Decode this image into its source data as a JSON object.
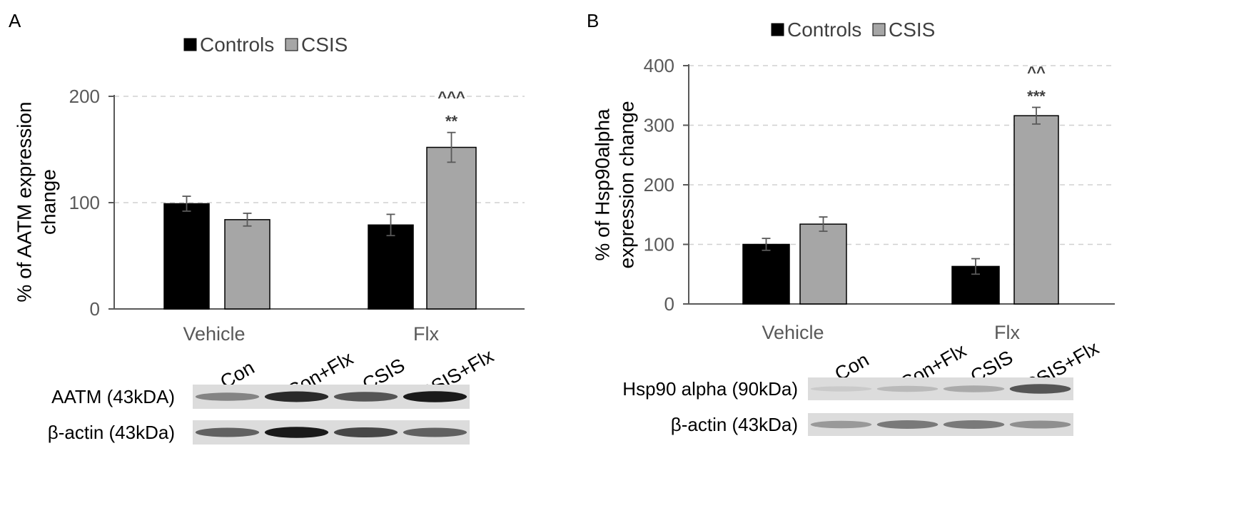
{
  "colors": {
    "controls": "#000000",
    "csis": "#a6a6a6",
    "axis": "#595959",
    "grid": "#d0d0d0",
    "text": "#404040",
    "band_bg": "#dcdcdc"
  },
  "chart_data": [
    {
      "type": "bar",
      "panel_label": "A",
      "title": "",
      "ylabel_lines": [
        "% of AATM expression",
        "change"
      ],
      "xlabel": "",
      "ylim": [
        0,
        200
      ],
      "yticks": [
        0,
        100,
        200
      ],
      "grid": true,
      "legend_position": "top",
      "categories": [
        "Vehicle",
        "Flx"
      ],
      "series": [
        {
          "name": "Controls",
          "values": [
            99,
            79
          ],
          "errors": [
            7,
            10
          ]
        },
        {
          "name": "CSIS",
          "values": [
            84,
            152
          ],
          "errors": [
            6,
            14
          ]
        }
      ],
      "annotations": [
        {
          "category": "Flx",
          "series": "CSIS",
          "lines": [
            "^^^",
            "**"
          ]
        }
      ]
    },
    {
      "type": "bar",
      "panel_label": "B",
      "title": "",
      "ylabel_lines": [
        "% of Hsp90alpha",
        "expression change"
      ],
      "xlabel": "",
      "ylim": [
        0,
        400
      ],
      "yticks": [
        0,
        100,
        200,
        300,
        400
      ],
      "grid": true,
      "legend_position": "top",
      "categories": [
        "Vehicle",
        "Flx"
      ],
      "series": [
        {
          "name": "Controls",
          "values": [
            100,
            63
          ],
          "errors": [
            10,
            13
          ]
        },
        {
          "name": "CSIS",
          "values": [
            134,
            316
          ],
          "errors": [
            12,
            14
          ]
        }
      ],
      "annotations": [
        {
          "category": "Flx",
          "series": "CSIS",
          "lines": [
            "^^",
            "***"
          ]
        }
      ]
    }
  ],
  "blots": [
    {
      "panel": "A",
      "lanes": [
        "Con",
        "Con+Flx",
        "CSIS",
        "CSIS+Flx"
      ],
      "rows": [
        {
          "label": "AATM (43kDA)",
          "intensities": [
            0.55,
            0.9,
            0.75,
            0.95
          ]
        },
        {
          "label": "β-actin (43kDa)",
          "intensities": [
            0.7,
            0.95,
            0.8,
            0.7
          ]
        }
      ]
    },
    {
      "panel": "B",
      "lanes": [
        "Con",
        "Con+Flx",
        "CSIS",
        "CSIS+Flx"
      ],
      "rows": [
        {
          "label": "Hsp90 alpha (90kDa)",
          "intensities": [
            0.12,
            0.25,
            0.35,
            0.75
          ]
        },
        {
          "label": "β-actin (43kDa)",
          "intensities": [
            0.45,
            0.6,
            0.6,
            0.5
          ]
        }
      ]
    }
  ]
}
